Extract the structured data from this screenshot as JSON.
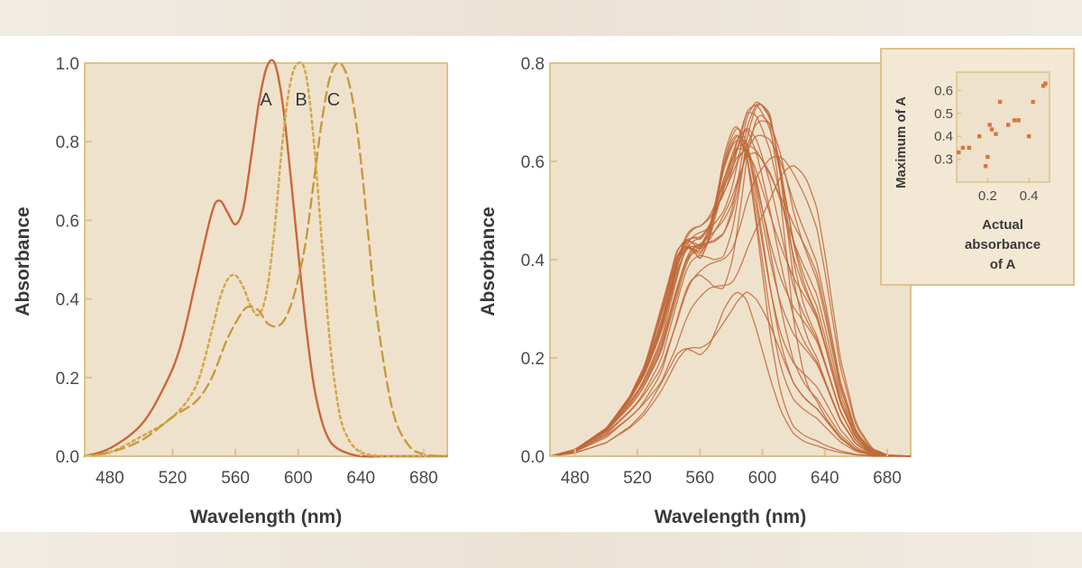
{
  "colors": {
    "plot_bg": "#efe2cc",
    "frame": "#dcc28c",
    "solid_curve": "#c8683c",
    "dotted_curve": "#d4a84c",
    "dashed_curve": "#c89a3c",
    "mixture_curve": "#c0683a",
    "inset_point": "#d4783c"
  },
  "chart_data": [
    {
      "type": "line",
      "xlabel": "Wavelength (nm)",
      "ylabel": "Absorbance",
      "xlim": [
        464,
        695
      ],
      "ylim": [
        0,
        1.0
      ],
      "xticks": [
        "480",
        "520",
        "560",
        "600",
        "640",
        "680"
      ],
      "yticks": [
        "0.0",
        "0.2",
        "0.4",
        "0.6",
        "0.8",
        "1.0"
      ],
      "grid": false,
      "series": [
        {
          "name": "A",
          "style": "solid",
          "x": [
            464,
            480,
            500,
            515,
            525,
            535,
            545,
            550,
            555,
            560,
            565,
            570,
            575,
            580,
            585,
            590,
            595,
            600,
            605,
            610,
            615,
            620,
            625,
            630,
            640,
            660,
            695
          ],
          "y": [
            0.0,
            0.02,
            0.08,
            0.18,
            0.28,
            0.45,
            0.62,
            0.65,
            0.62,
            0.59,
            0.63,
            0.76,
            0.9,
            0.99,
            1.0,
            0.9,
            0.72,
            0.52,
            0.33,
            0.18,
            0.09,
            0.04,
            0.02,
            0.01,
            0.0,
            0.0,
            0.0
          ]
        },
        {
          "name": "B",
          "style": "dotted",
          "x": [
            464,
            480,
            500,
            520,
            535,
            545,
            550,
            555,
            560,
            565,
            570,
            575,
            580,
            585,
            590,
            595,
            600,
            605,
            610,
            615,
            620,
            625,
            630,
            640,
            660,
            695
          ],
          "y": [
            0.0,
            0.01,
            0.05,
            0.1,
            0.18,
            0.32,
            0.4,
            0.45,
            0.46,
            0.43,
            0.38,
            0.36,
            0.42,
            0.58,
            0.8,
            0.95,
            1.0,
            0.97,
            0.8,
            0.55,
            0.3,
            0.14,
            0.06,
            0.01,
            0.0,
            0.0
          ]
        },
        {
          "name": "C",
          "style": "dashed",
          "x": [
            464,
            480,
            500,
            520,
            535,
            545,
            555,
            565,
            570,
            575,
            580,
            585,
            590,
            595,
            600,
            605,
            610,
            615,
            620,
            625,
            630,
            635,
            640,
            645,
            650,
            660,
            670,
            680,
            695
          ],
          "y": [
            0.0,
            0.01,
            0.04,
            0.1,
            0.14,
            0.2,
            0.3,
            0.37,
            0.38,
            0.37,
            0.34,
            0.33,
            0.34,
            0.38,
            0.45,
            0.55,
            0.7,
            0.85,
            0.96,
            1.0,
            0.98,
            0.9,
            0.75,
            0.55,
            0.36,
            0.12,
            0.03,
            0.005,
            0.0
          ]
        }
      ],
      "annotations": [
        "A",
        "B",
        "C"
      ]
    },
    {
      "type": "line",
      "xlabel": "Wavelength (nm)",
      "ylabel": "Absorbance",
      "xlim": [
        464,
        695
      ],
      "ylim": [
        0,
        0.8
      ],
      "xticks": [
        "480",
        "520",
        "560",
        "600",
        "640",
        "680"
      ],
      "yticks": [
        "0.0",
        "0.2",
        "0.4",
        "0.6",
        "0.8"
      ],
      "grid": false,
      "note_mixtures": "mixtures of A, B and C; each curve = a*A + b*B + c*C",
      "mixtures": [
        [
          0.65,
          0.02,
          0.03
        ],
        [
          0.6,
          0.05,
          0.08
        ],
        [
          0.58,
          0.1,
          0.1
        ],
        [
          0.55,
          0.08,
          0.15
        ],
        [
          0.52,
          0.12,
          0.2
        ],
        [
          0.48,
          0.2,
          0.12
        ],
        [
          0.46,
          0.15,
          0.25
        ],
        [
          0.44,
          0.25,
          0.2
        ],
        [
          0.4,
          0.2,
          0.3
        ],
        [
          0.38,
          0.3,
          0.25
        ],
        [
          0.35,
          0.35,
          0.3
        ],
        [
          0.33,
          0.25,
          0.4
        ],
        [
          0.3,
          0.4,
          0.32
        ],
        [
          0.28,
          0.3,
          0.35
        ],
        [
          0.25,
          0.45,
          0.3
        ],
        [
          0.22,
          0.35,
          0.42
        ],
        [
          0.2,
          0.5,
          0.25
        ],
        [
          0.18,
          0.42,
          0.38
        ],
        [
          0.15,
          0.55,
          0.2
        ],
        [
          0.12,
          0.3,
          0.5
        ],
        [
          0.1,
          0.6,
          0.1
        ],
        [
          0.08,
          0.2,
          0.55
        ],
        [
          0.2,
          0.15,
          0.1
        ],
        [
          0.3,
          0.05,
          0.02
        ]
      ],
      "inset": {
        "type": "scatter",
        "xlabel": "Actual absorbance of A",
        "ylabel": "Maximum of A",
        "xlim": [
          0.05,
          0.5
        ],
        "ylim": [
          0.2,
          0.68
        ],
        "xticks": [
          "0.2",
          "0.4"
        ],
        "yticks": [
          "0.3",
          "0.4",
          "0.5",
          "0.6"
        ],
        "x": [
          0.06,
          0.08,
          0.11,
          0.16,
          0.19,
          0.2,
          0.21,
          0.22,
          0.24,
          0.26,
          0.3,
          0.33,
          0.35,
          0.4,
          0.42,
          0.47,
          0.48
        ],
        "y": [
          0.33,
          0.35,
          0.35,
          0.4,
          0.27,
          0.31,
          0.45,
          0.43,
          0.41,
          0.55,
          0.45,
          0.47,
          0.47,
          0.4,
          0.55,
          0.62,
          0.63
        ]
      }
    }
  ]
}
